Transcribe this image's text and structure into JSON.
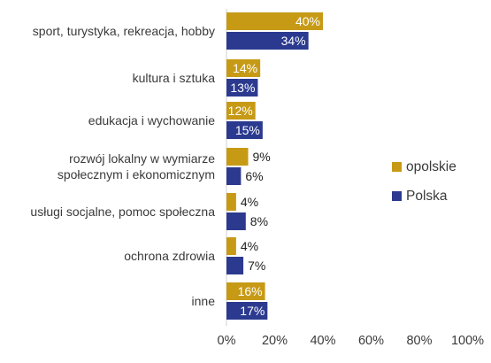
{
  "chart_data": {
    "type": "bar",
    "orientation": "horizontal",
    "categories": [
      "sport, turystyka, rekreacja, hobby",
      "kultura i sztuka",
      "edukacja i wychowanie",
      "rozwój lokalny w wymiarze społecznym i ekonomicznym",
      "usługi socjalne, pomoc społeczna",
      "ochrona zdrowia",
      "inne"
    ],
    "category_lines": [
      [
        "sport, turystyka, rekreacja, hobby"
      ],
      [
        "kultura i sztuka"
      ],
      [
        "edukacja i wychowanie"
      ],
      [
        "rozwój lokalny w wymiarze",
        "społecznym i ekonomicznym"
      ],
      [
        "usługi socjalne, pomoc społeczna"
      ],
      [
        "ochrona zdrowia"
      ],
      [
        "inne"
      ]
    ],
    "series": [
      {
        "name": "opolskie",
        "color": "#C79A16",
        "values": [
          40,
          14,
          12,
          9,
          4,
          4,
          16
        ]
      },
      {
        "name": "Polska",
        "color": "#2B3A8F",
        "values": [
          34,
          13,
          15,
          6,
          8,
          7,
          17
        ]
      }
    ],
    "x_ticks": [
      "0%",
      "20%",
      "40%",
      "60%",
      "80%",
      "100%"
    ],
    "xlim": [
      0,
      100
    ],
    "value_suffix": "%",
    "legend_position": "right",
    "grid": false
  }
}
